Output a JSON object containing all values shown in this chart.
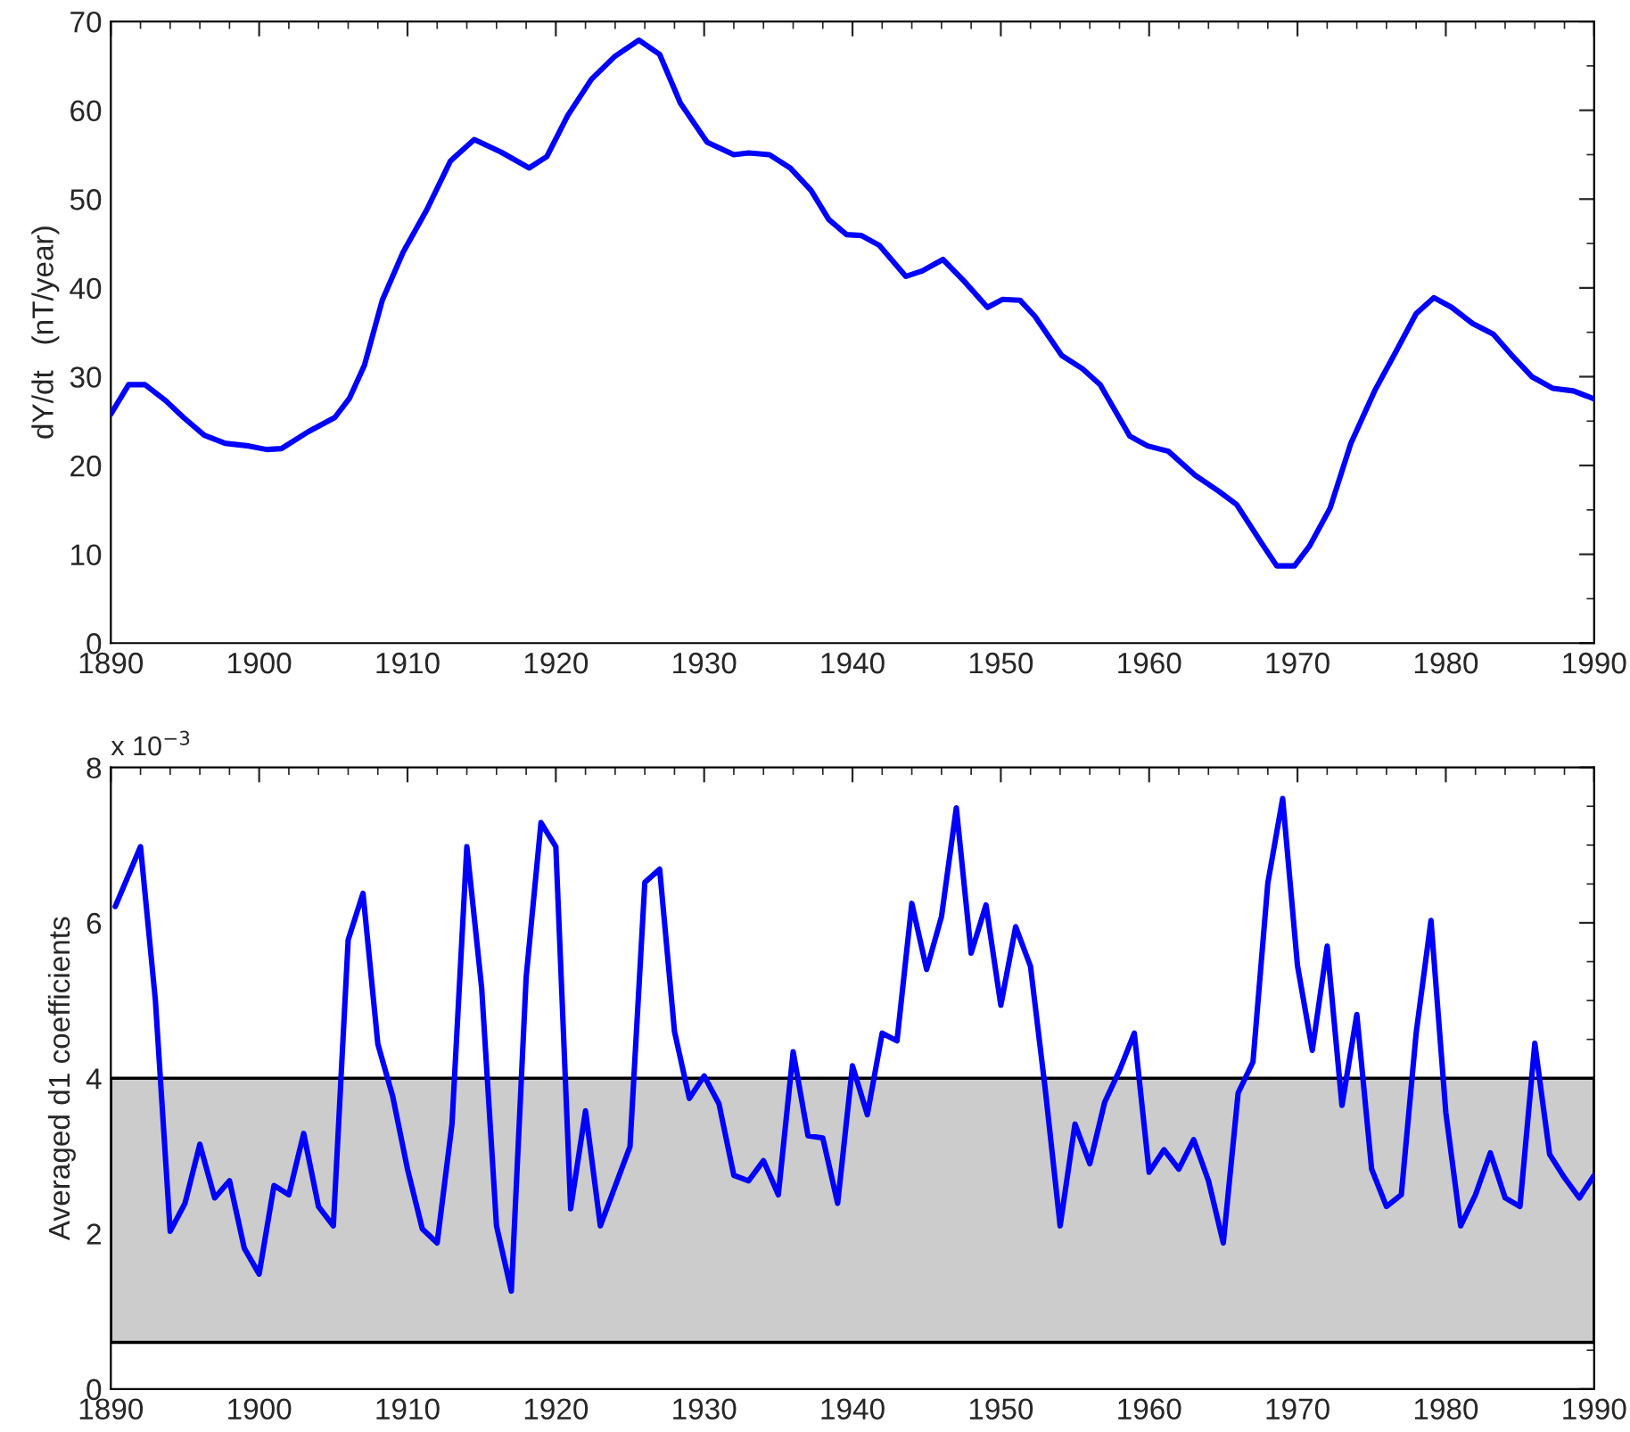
{
  "chart_data": [
    {
      "type": "line",
      "ylabel": "dY/dt   (nT/year)",
      "x": [
        1890.0,
        1891.2,
        1892.3,
        1893.7,
        1894.9,
        1896.3,
        1897.7,
        1899.3,
        1900.5,
        1901.5,
        1903.3,
        1905.1,
        1906.1,
        1907.1,
        1908.3,
        1909.7,
        1911.3,
        1912.9,
        1914.5,
        1916.3,
        1918.2,
        1919.4,
        1920.8,
        1922.4,
        1924.0,
        1925.6,
        1927.0,
        1928.4,
        1930.2,
        1932.0,
        1933.0,
        1934.4,
        1935.8,
        1937.2,
        1938.4,
        1939.6,
        1940.6,
        1941.8,
        1943.6,
        1944.7,
        1946.1,
        1947.5,
        1949.1,
        1950.1,
        1951.3,
        1952.3,
        1954.1,
        1955.5,
        1956.7,
        1958.7,
        1959.9,
        1961.3,
        1963.1,
        1964.7,
        1965.9,
        1967.6,
        1968.6,
        1969.8,
        1970.8,
        1972.2,
        1973.6,
        1975.2,
        1976.6,
        1978.0,
        1979.2,
        1980.4,
        1981.8,
        1983.2,
        1984.4,
        1985.8,
        1987.2,
        1988.6,
        1990.0
      ],
      "series": [
        {
          "color": "#0000ff",
          "values": [
            25.8,
            29.1,
            29.1,
            27.3,
            25.4,
            23.4,
            22.5,
            22.2,
            21.8,
            21.9,
            23.8,
            25.4,
            27.6,
            31.3,
            38.6,
            44.0,
            48.8,
            54.3,
            56.7,
            55.3,
            53.5,
            54.8,
            59.4,
            63.5,
            66.1,
            67.9,
            66.3,
            60.8,
            56.4,
            55.0,
            55.2,
            55.0,
            53.5,
            51.0,
            47.7,
            46.0,
            45.9,
            44.8,
            41.3,
            41.9,
            43.2,
            40.8,
            37.8,
            38.7,
            38.6,
            36.8,
            32.4,
            30.9,
            29.1,
            23.3,
            22.2,
            21.6,
            18.9,
            17.1,
            15.6,
            11.2,
            8.7,
            8.7,
            10.9,
            15.2,
            22.5,
            28.4,
            32.7,
            37.1,
            38.9,
            37.8,
            36.0,
            34.8,
            32.5,
            30.0,
            28.7,
            28.4,
            27.5
          ]
        }
      ],
      "xlim": [
        1890,
        1990
      ],
      "xticks": [
        1890,
        1900,
        1910,
        1920,
        1930,
        1940,
        1950,
        1960,
        1970,
        1980,
        1990
      ],
      "ylim": [
        0,
        70
      ],
      "yticks": [
        0,
        10,
        20,
        30,
        40,
        50,
        60,
        70
      ],
      "grid": false,
      "legend": false
    },
    {
      "type": "line",
      "ylabel": "Averaged d1 coefficients",
      "annotations": [
        "x 10$^{−3}$"
      ],
      "x": [
        1890.3,
        1892,
        1893,
        1894,
        1895,
        1896,
        1897,
        1898,
        1899,
        1900,
        1901,
        1902,
        1903,
        1904,
        1905,
        1906,
        1907,
        1908,
        1909,
        1910,
        1911,
        1912,
        1913,
        1914,
        1915,
        1916,
        1917,
        1918,
        1919,
        1920,
        1921,
        1922,
        1923,
        1924,
        1925,
        1926,
        1927,
        1928,
        1929,
        1930,
        1931,
        1932,
        1933,
        1934,
        1935,
        1936,
        1937,
        1938,
        1939,
        1940,
        1941,
        1942,
        1943,
        1944,
        1945,
        1946,
        1947,
        1948,
        1949,
        1950,
        1951,
        1952,
        1953,
        1954,
        1955,
        1956,
        1957,
        1958,
        1959,
        1960,
        1961,
        1962,
        1963,
        1964,
        1965,
        1966,
        1967,
        1968,
        1969,
        1970,
        1971,
        1972,
        1973,
        1974,
        1975,
        1976,
        1977,
        1978,
        1979,
        1980,
        1981,
        1982,
        1983,
        1984,
        1985,
        1986,
        1987,
        1988,
        1989,
        1990
      ],
      "series": [
        {
          "color": "#0000ff",
          "values": [
            6.21,
            6.98,
            5.01,
            2.03,
            2.39,
            3.15,
            2.46,
            2.68,
            1.81,
            1.48,
            2.62,
            2.5,
            3.29,
            2.35,
            2.1,
            5.78,
            6.38,
            4.44,
            3.77,
            2.83,
            2.06,
            1.88,
            3.41,
            6.98,
            5.16,
            2.1,
            1.26,
            5.3,
            7.29,
            6.98,
            2.32,
            3.58,
            2.1,
            2.61,
            3.12,
            6.52,
            6.69,
            4.6,
            3.74,
            4.03,
            3.67,
            2.75,
            2.68,
            2.94,
            2.5,
            4.34,
            3.26,
            3.23,
            2.39,
            4.16,
            3.53,
            4.58,
            4.48,
            6.25,
            5.4,
            6.08,
            7.48,
            5.61,
            6.23,
            4.94,
            5.95,
            5.44,
            3.85,
            2.1,
            3.41,
            2.9,
            3.69,
            4.1,
            4.58,
            2.79,
            3.08,
            2.83,
            3.21,
            2.68,
            1.88,
            3.81,
            4.21,
            6.51,
            7.6,
            5.45,
            4.36,
            5.7,
            3.65,
            4.82,
            2.83,
            2.35,
            2.5,
            4.58,
            6.03,
            3.56,
            2.1,
            2.5,
            3.04,
            2.46,
            2.35,
            4.45,
            3.02,
            2.72,
            2.46,
            2.75
          ]
        }
      ],
      "bands": [
        {
          "axis": "y",
          "from": 0.6,
          "to": 4,
          "color": "#cccccc"
        }
      ],
      "xlim": [
        1890,
        1990
      ],
      "xticks": [
        1890,
        1900,
        1910,
        1920,
        1930,
        1940,
        1950,
        1960,
        1970,
        1980,
        1990
      ],
      "ylim": [
        0,
        8
      ],
      "yticks": [
        0,
        2,
        4,
        6,
        8
      ],
      "grid": false,
      "legend": false
    }
  ]
}
